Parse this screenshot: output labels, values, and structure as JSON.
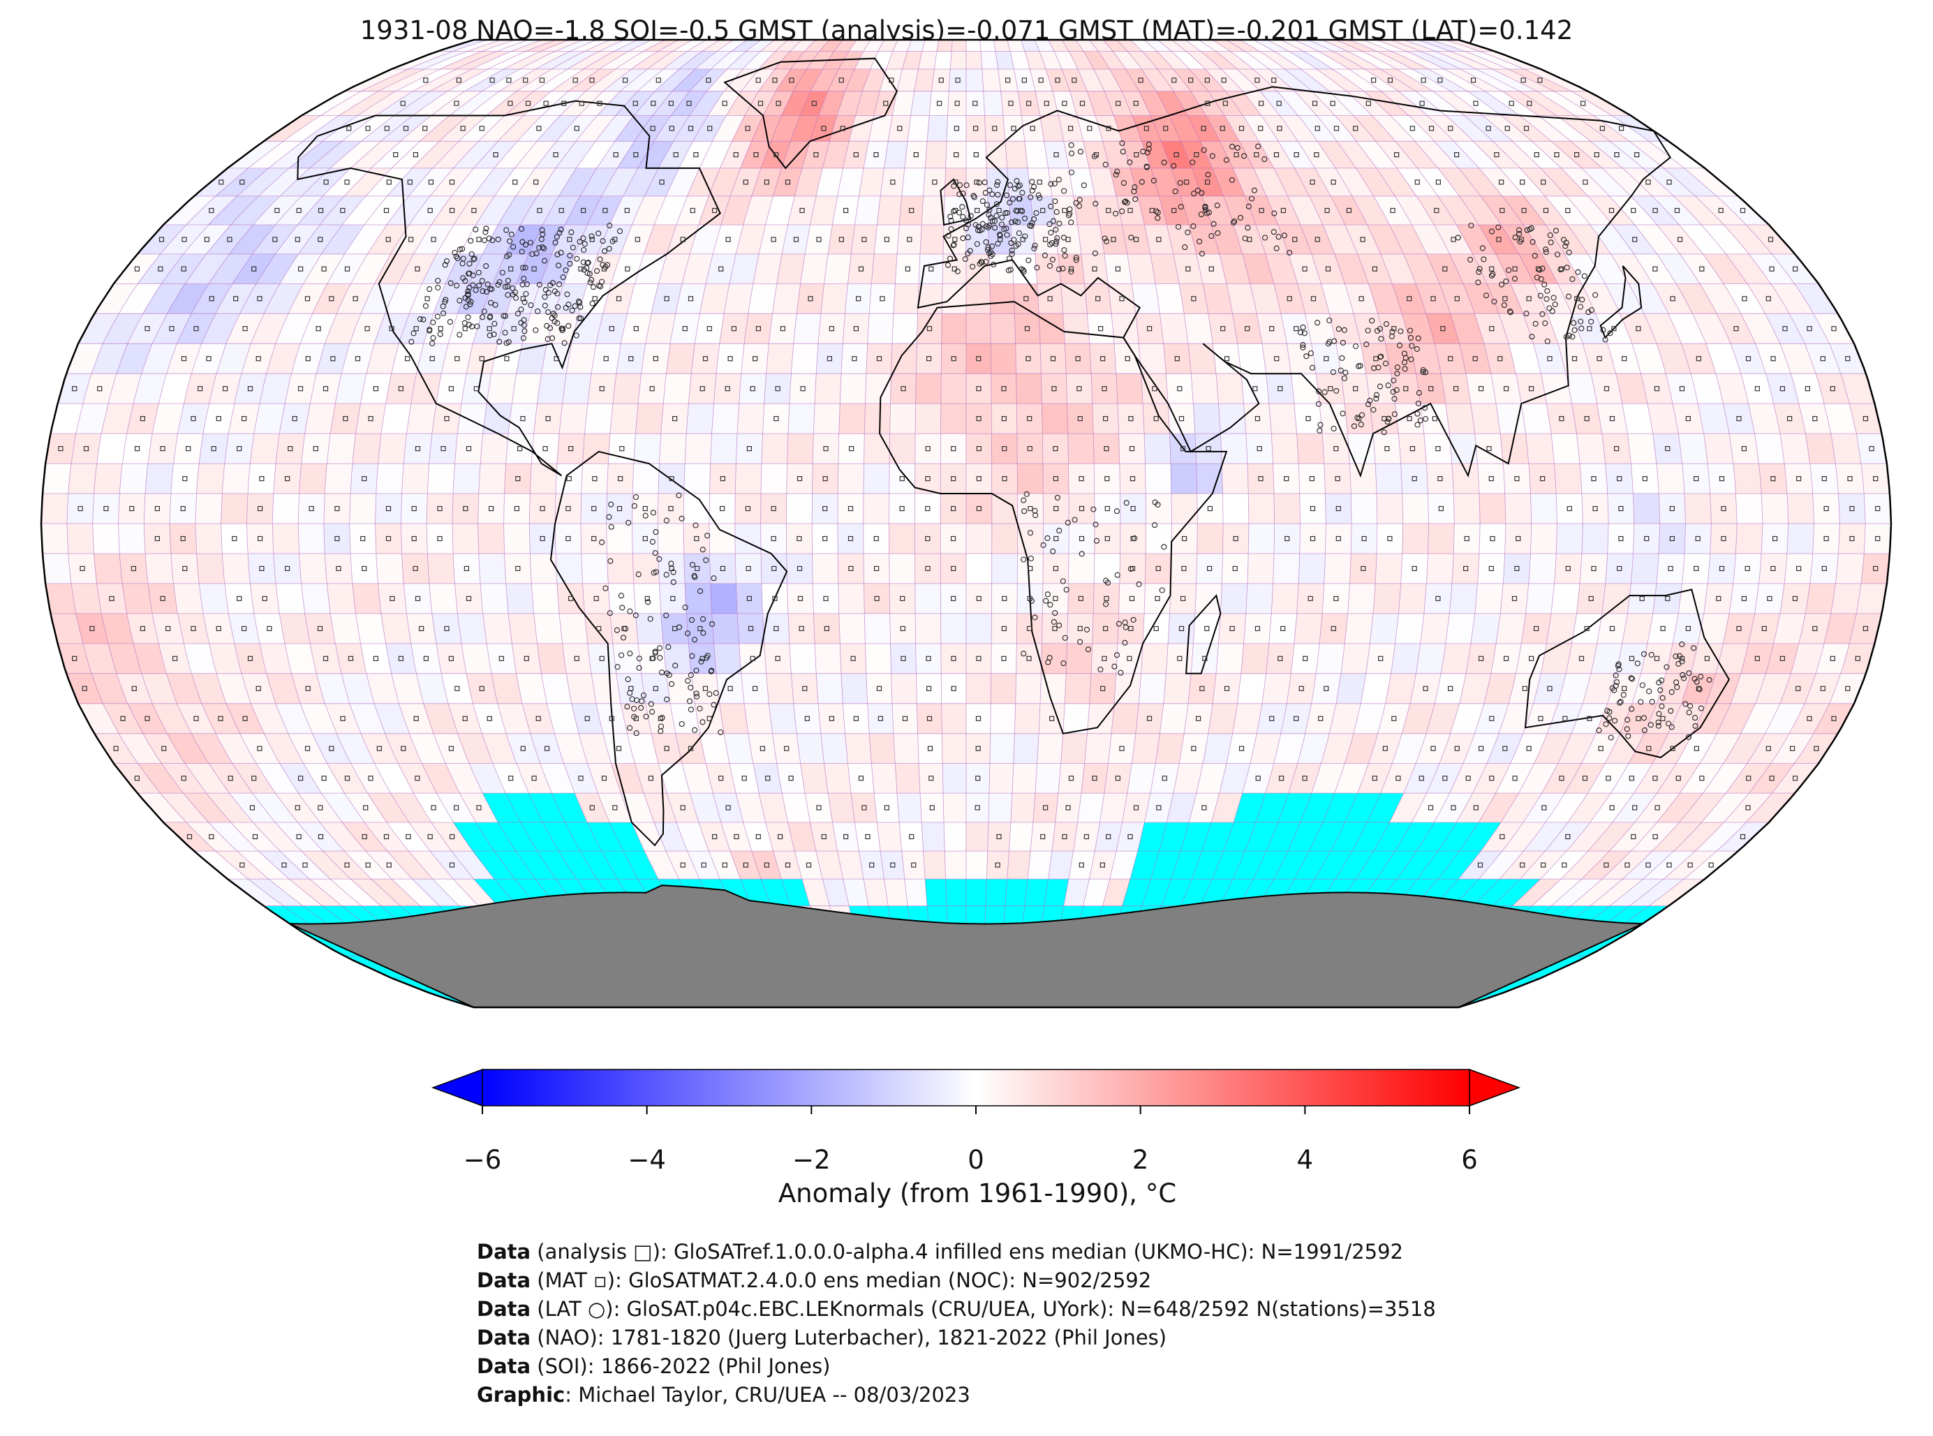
{
  "title": "1931-08 NAO=-1.8 SOI=-0.5 GMST (analysis)=-0.071 GMST (MAT)=-0.201 GMST (LAT)=0.142",
  "colorbar": {
    "label": "Anomaly (from 1961-1990), °C",
    "min": -6,
    "max": 6,
    "ticks": [
      "−6",
      "−4",
      "−2",
      "0",
      "2",
      "4",
      "6"
    ],
    "tick_values": [
      -6,
      -4,
      -2,
      0,
      2,
      4,
      6
    ],
    "low_color": "#0000ff",
    "mid_color": "#ffffff",
    "high_color": "#ff0000"
  },
  "map": {
    "projection": "Robinson",
    "grid_resolution_deg": 5,
    "no_data_color": "#00ffff",
    "land_mask_color": "#808080",
    "grid_line_color": "#b070c0"
  },
  "credits": [
    {
      "bold": "Data",
      "text": " (analysis □): GloSATref.1.0.0.0-alpha.4 infilled ens median (UKMO-HC): N=1991/2592"
    },
    {
      "bold": "Data",
      "text": " (MAT ▫): GloSATMAT.2.4.0.0 ens median (NOC): N=902/2592"
    },
    {
      "bold": "Data",
      "text": " (LAT ○): GloSAT.p04c.EBC.LEKnormals (CRU/UEA, UYork): N=648/2592 N(stations)=3518"
    },
    {
      "bold": "Data",
      "text": " (NAO): 1781-1820 (Juerg Luterbacher), 1821-2022 (Phil Jones)"
    },
    {
      "bold": "Data",
      "text": " (SOI): 1866-2022 (Phil Jones)"
    },
    {
      "bold": "Graphic",
      "text": ": Michael Taylor, CRU/UEA -- 08/03/2023"
    }
  ]
}
